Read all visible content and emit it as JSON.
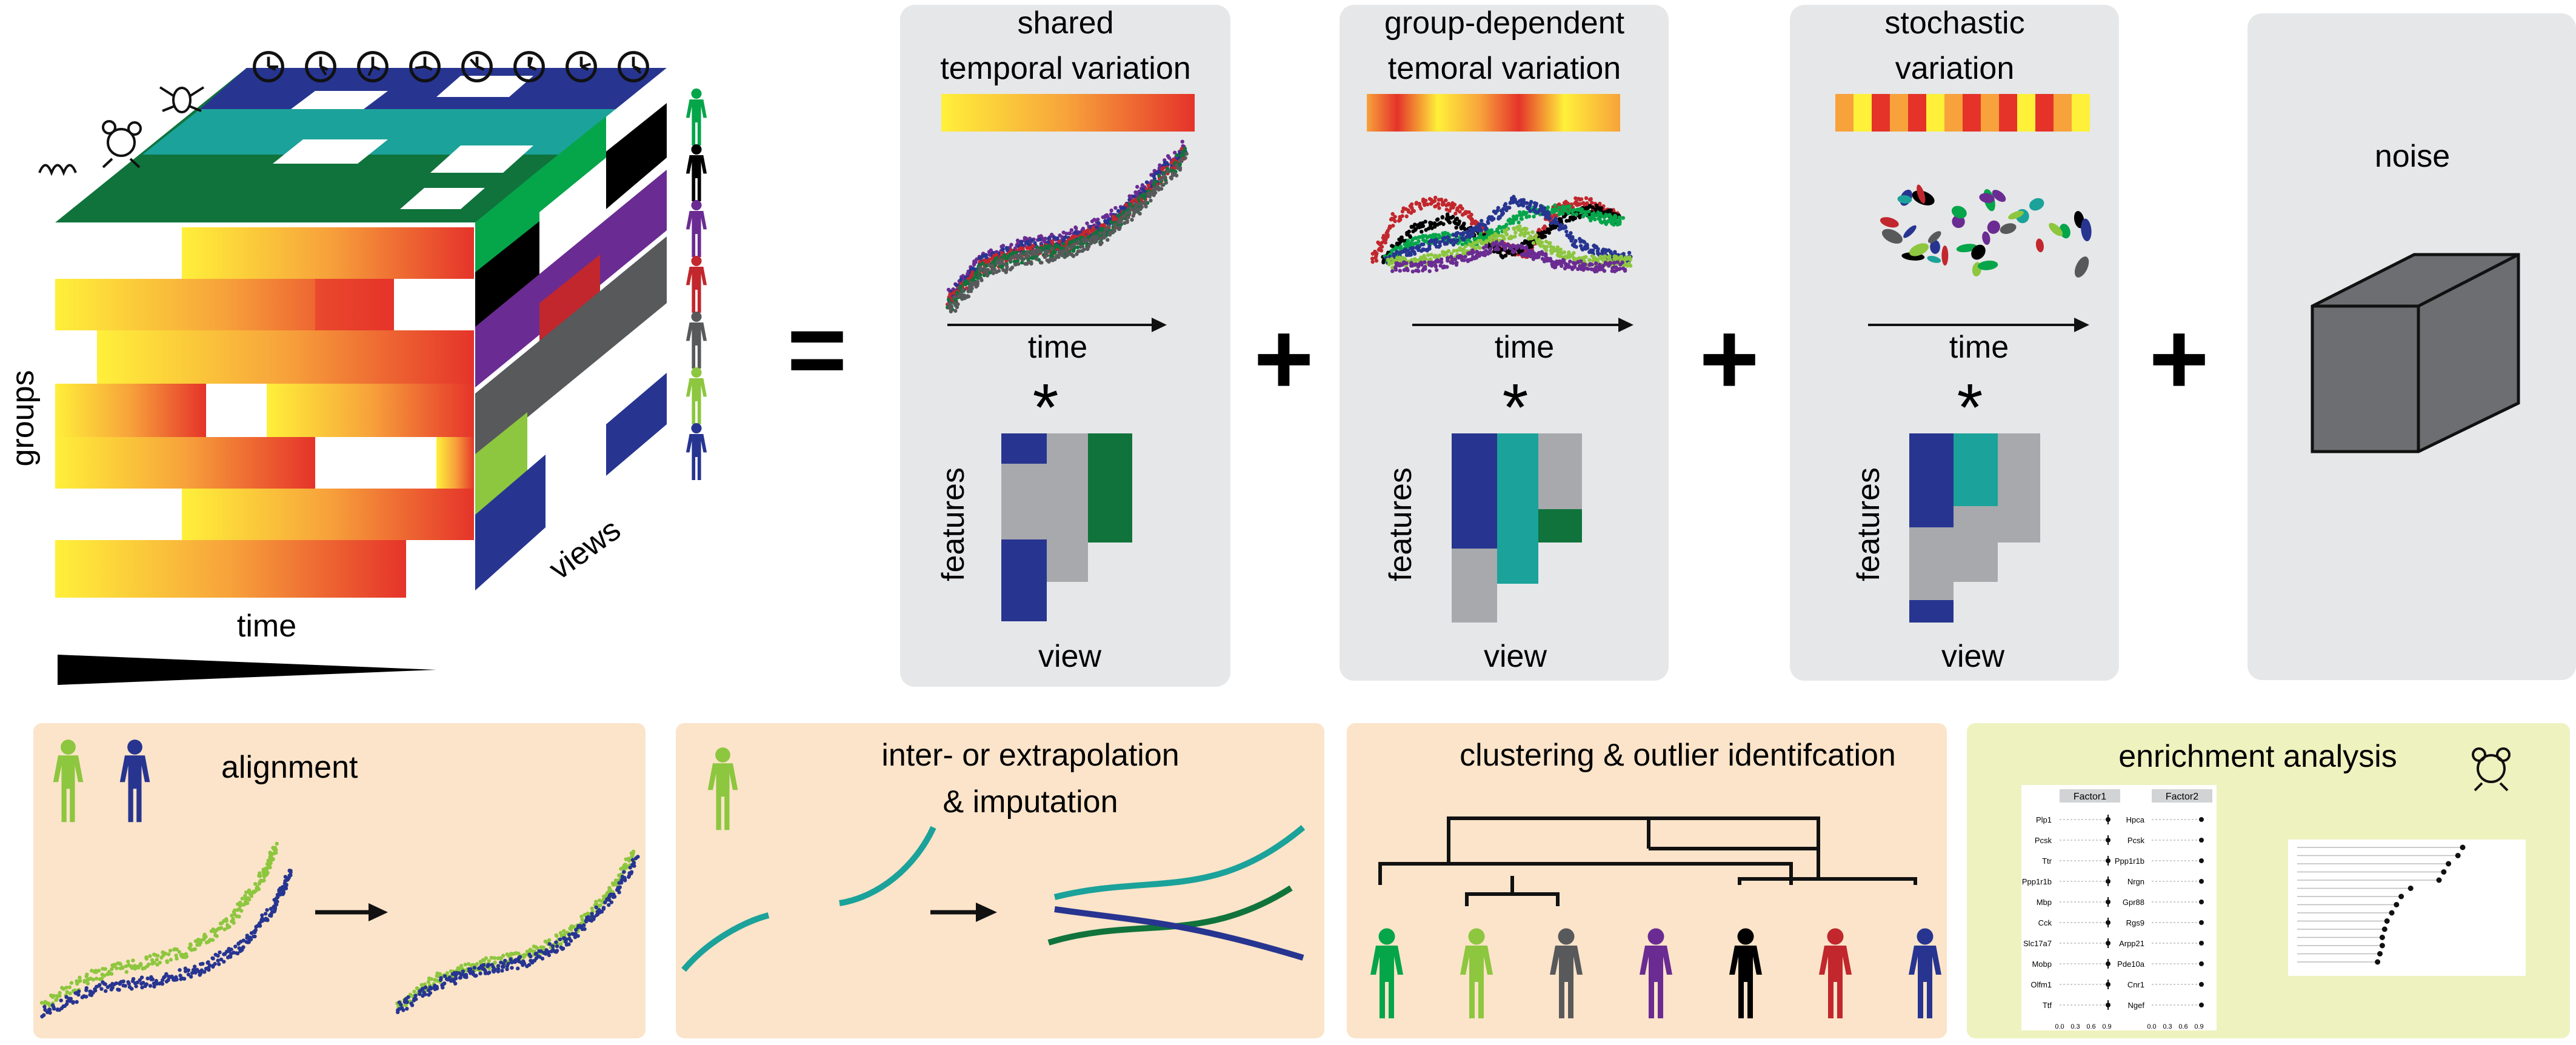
{
  "cube": {
    "groups_label": "groups",
    "time_label": "time",
    "views_label": "views",
    "gradient_start": "#fff03a",
    "gradient_end": "#e5332a",
    "top_colors": [
      "#273591",
      "#1ba29a",
      "#10733c"
    ],
    "side_colors": [
      "#05a54a",
      "#000000",
      "#6a2c92",
      "#c1272d",
      "#58595b",
      "#8dc63f",
      "#273591"
    ],
    "clock_icons": [
      "clock-icon",
      "clock-icon",
      "clock-icon",
      "clock-icon",
      "clock-icon",
      "clock-icon",
      "clock-icon",
      "clock-icon"
    ],
    "person_icons": [
      "#05a54a",
      "#000000",
      "#6a2c92",
      "#c1272d",
      "#58595b",
      "#8dc63f",
      "#273591"
    ]
  },
  "operators": {
    "equals": "=",
    "plus": "+",
    "times": "*"
  },
  "components": [
    {
      "title_line1": "shared",
      "title_line2": "temporal variation",
      "time_label": "time",
      "features_label": "features",
      "view_label": "view"
    },
    {
      "title_line1": "group-dependent",
      "title_line2": "temoral variation",
      "time_label": "time",
      "features_label": "features",
      "view_label": "view"
    },
    {
      "title_line1": "stochastic",
      "title_line2": "variation",
      "time_label": "time",
      "features_label": "features",
      "view_label": "view"
    }
  ],
  "noise": {
    "title": "noise"
  },
  "applications": [
    {
      "title": "alignment"
    },
    {
      "title_line1": "inter- or extrapolation",
      "title_line2": "& imputation"
    },
    {
      "title": "clustering & outlier identifcation"
    },
    {
      "title": "enrichment analysis"
    }
  ],
  "enrichment": {
    "factor1_header": "Factor1",
    "factor2_header": "Factor2",
    "factor1_genes": [
      "Plp1",
      "Pcsk",
      "Ttr",
      "Ppp1r1b",
      "Mbp",
      "Cck",
      "Slc17a7",
      "Mobp",
      "Olfm1",
      "Ttf"
    ],
    "factor2_genes": [
      "Hpca",
      "Pcsk",
      "Ppp1r1b",
      "Nrgn",
      "Gpr88",
      "Rgs9",
      "Arpp21",
      "Pde10a",
      "Cnr1",
      "Ngef"
    ],
    "axis_ticks": [
      "0.0",
      "0.3",
      "0.6",
      "0.9"
    ]
  },
  "palette": {
    "panel_gray": "#e6e7e8",
    "bottom_peach": "#fbe4c9",
    "bottom_green": "#eef2bf",
    "teal": "#1ba29a",
    "blue": "#273591",
    "dark_green": "#10733c",
    "light_green": "#8dc63f",
    "gray_block": "#a7a9ac"
  }
}
